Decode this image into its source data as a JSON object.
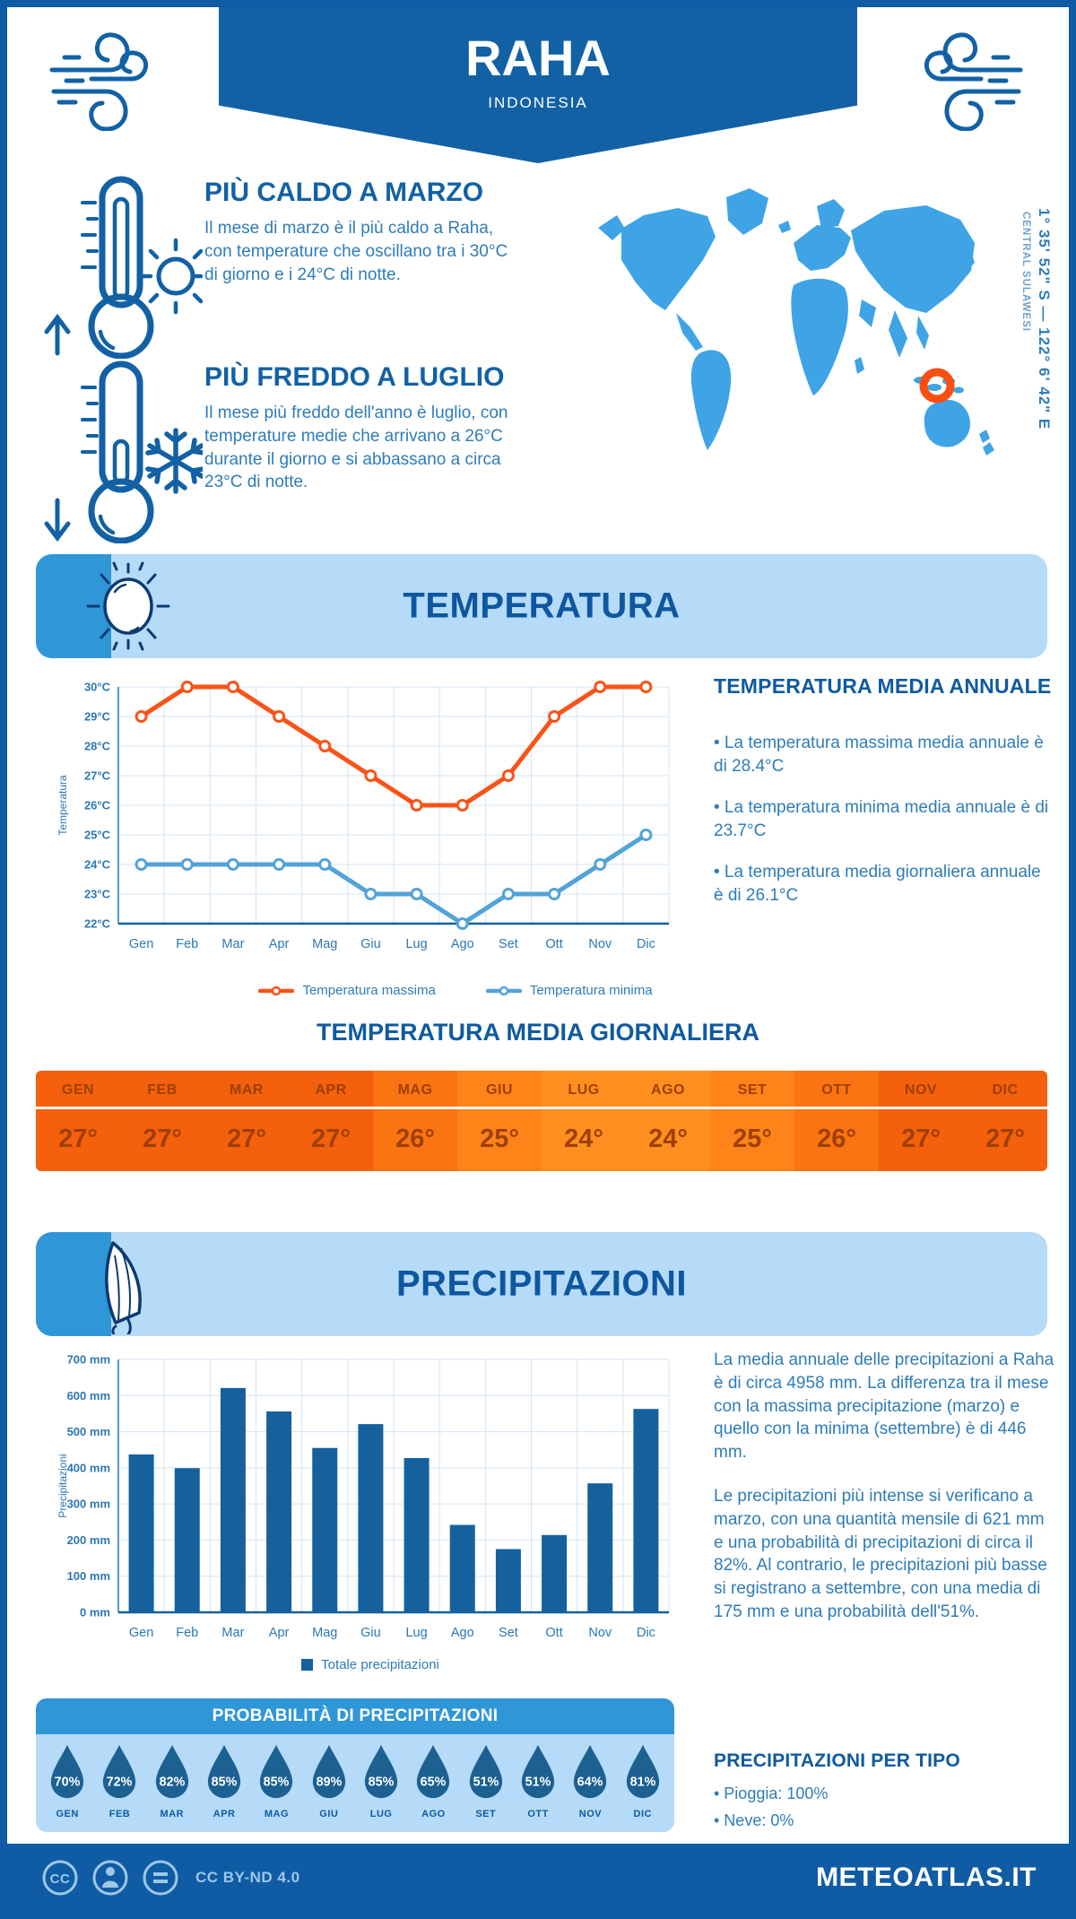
{
  "header": {
    "city": "RAHA",
    "country": "INDONESIA"
  },
  "highlights": [
    {
      "title": "PIÙ CALDO A MARZO",
      "text": "Il mese di marzo è il più caldo a Raha, con temperature che oscillano tra i 30°C di giorno e i 24°C di notte."
    },
    {
      "title": "PIÙ FREDDO A LUGLIO",
      "text": "Il mese più freddo dell'anno è luglio, con temperature medie che arrivano a 26°C durante il giorno e si abbassano a circa 23°C di notte."
    }
  ],
  "map": {
    "coordinates": "1° 35' 52\" S — 122° 6' 42\" E",
    "region": "CENTRAL SULAWESI"
  },
  "temperature_section": {
    "title": "TEMPERATURA",
    "annual": {
      "heading": "TEMPERATURA MEDIA ANNUALE",
      "bullets": [
        "• La temperatura massima media annuale è di 28.4°C",
        "• La temperatura minima media annuale è di 23.7°C",
        "• La temperatura media giornaliera annuale è di 26.1°C"
      ]
    },
    "daily": {
      "heading": "TEMPERATURA MEDIA GIORNALIERA",
      "months": [
        "GEN",
        "FEB",
        "MAR",
        "APR",
        "MAG",
        "GIU",
        "LUG",
        "AGO",
        "SET",
        "OTT",
        "NOV",
        "DIC"
      ],
      "values": [
        "27°",
        "27°",
        "27°",
        "27°",
        "26°",
        "25°",
        "24°",
        "24°",
        "25°",
        "26°",
        "27°",
        "27°"
      ],
      "value_colors": {
        "27°": "#F4600B",
        "26°": "#FA7412",
        "25°": "#FE8319",
        "24°": "#FF8F1F"
      }
    }
  },
  "chart_data": [
    {
      "type": "line",
      "categories": [
        "Gen",
        "Feb",
        "Mar",
        "Apr",
        "Mag",
        "Giu",
        "Lug",
        "Ago",
        "Set",
        "Ott",
        "Nov",
        "Dic"
      ],
      "series": [
        {
          "name": "Temperatura massima",
          "color": "#F95318",
          "values": [
            29,
            30,
            30,
            29,
            28,
            27,
            26,
            26,
            27,
            29,
            30,
            30
          ]
        },
        {
          "name": "Temperatura minima",
          "color": "#53A3D8",
          "values": [
            24,
            24,
            24,
            24,
            24,
            23,
            23,
            22,
            23,
            23,
            24,
            25
          ]
        }
      ],
      "ylabel": "Temperatura",
      "xlabel": "",
      "title": "",
      "ylim": [
        22,
        30
      ],
      "ytick_step": 1,
      "ytick_suffix": "°C",
      "grid": true,
      "legend_position": "bottom"
    },
    {
      "type": "bar",
      "categories": [
        "Gen",
        "Feb",
        "Mar",
        "Apr",
        "Mag",
        "Giu",
        "Lug",
        "Ago",
        "Set",
        "Ott",
        "Nov",
        "Dic"
      ],
      "series": [
        {
          "name": "Totale precipitazioni",
          "color": "#15619E",
          "values": [
            437,
            399,
            621,
            556,
            455,
            521,
            427,
            242,
            175,
            214,
            357,
            563
          ]
        }
      ],
      "ylabel": "Precipitazioni",
      "xlabel": "",
      "title": "",
      "ylim": [
        0,
        700
      ],
      "ytick_step": 100,
      "ytick_suffix": " mm",
      "grid": true,
      "legend_position": "bottom"
    }
  ],
  "precipitation_section": {
    "title": "PRECIPITAZIONI",
    "paragraphs": [
      "La media annuale delle precipitazioni a Raha è di circa 4958 mm. La differenza tra il mese con la massima precipitazione (marzo) e quello con la minima (settembre) è di 446 mm.",
      "Le precipitazioni più intense si verificano a marzo, con una quantità mensile di 621 mm e una probabilità di precipitazioni di circa il 82%. Al contrario, le precipitazioni più basse si registrano a settembre, con una media di 175 mm e una probabilità dell'51%."
    ],
    "probability": {
      "heading": "PROBABILITÀ DI PRECIPITAZIONI",
      "months": [
        "GEN",
        "FEB",
        "MAR",
        "APR",
        "MAG",
        "GIU",
        "LUG",
        "AGO",
        "SET",
        "OTT",
        "NOV",
        "DIC"
      ],
      "values": [
        "70%",
        "72%",
        "82%",
        "85%",
        "85%",
        "89%",
        "85%",
        "65%",
        "51%",
        "51%",
        "64%",
        "81%"
      ],
      "drop_color": "#1D6092"
    },
    "types": {
      "heading": "PRECIPITAZIONI PER TIPO",
      "bullets": [
        "• Pioggia: 100%",
        "• Neve: 0%"
      ]
    }
  },
  "footer": {
    "license": "CC BY-ND 4.0",
    "site": "METEOATLAS.IT"
  },
  "icons": {
    "wind-icon": "curled wind gusts",
    "thermometer-up-icon": "thermometer with up arrow",
    "sun-icon": "sun",
    "thermometer-down-icon": "thermometer with down arrow",
    "snowflake-icon": "snowflake",
    "umbrella-icon": "closed umbrella",
    "map-marker-icon": "orange ring",
    "cc-icon": "creative commons",
    "person-icon": "attribution person",
    "nd-icon": "no derivatives equals sign"
  },
  "colors": {
    "page_border": "#0F5CA5",
    "banner_blue": "#1261A5",
    "section_bg": "#B5DBF8",
    "icon_box": "#2F96D8",
    "heading_blue": "#0F5AA0",
    "body_blue": "#2E7CB8",
    "map_blue": "#3FA4E6",
    "marker_orange": "#F94E12",
    "grid": "#D4E4F3"
  }
}
